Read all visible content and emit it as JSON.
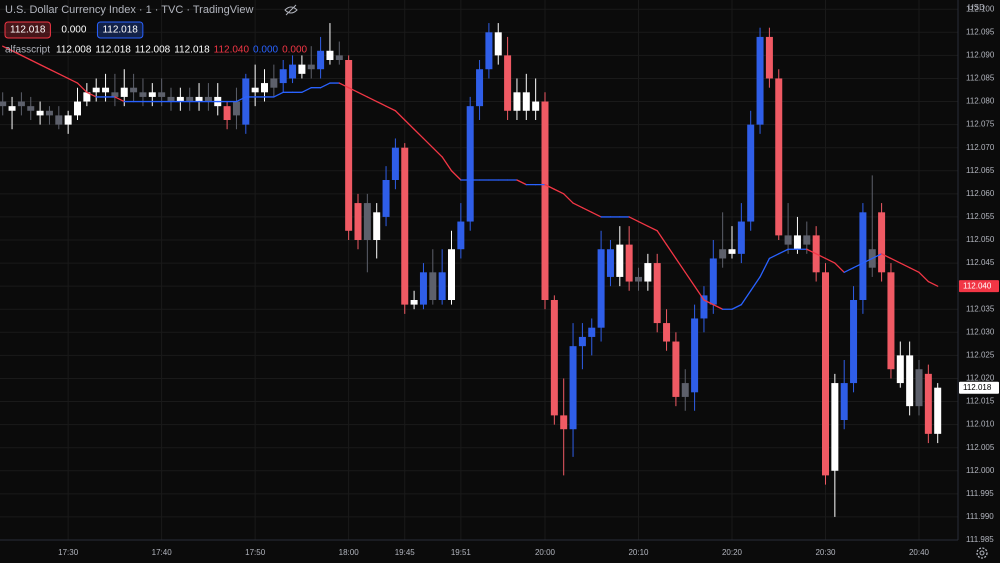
{
  "header": {
    "title": "U.S. Dollar Currency Index · 1 · TVC · TradingView",
    "quote": [
      {
        "text": "112.018",
        "color": "#f23645",
        "box": true
      },
      {
        "text": "0.000",
        "color": "#ffffff",
        "box": false
      },
      {
        "text": "112.018",
        "color": "#2962ff",
        "box": true
      }
    ],
    "indicator": {
      "name": "alfasscript",
      "values": [
        {
          "text": "112.008",
          "color": "#ffffff"
        },
        {
          "text": "112.018",
          "color": "#ffffff"
        },
        {
          "text": "112.008",
          "color": "#ffffff"
        },
        {
          "text": "112.018",
          "color": "#ffffff"
        },
        {
          "text": "112.040",
          "color": "#f23645"
        },
        {
          "text": "0.000",
          "color": "#2962ff"
        },
        {
          "text": "0.000",
          "color": "#f23645"
        }
      ]
    },
    "currency": "USD"
  },
  "chart_data": {
    "type": "candlestick",
    "open": [
      112.08,
      112.078,
      112.08,
      112.079,
      112.077,
      112.078,
      112.077,
      112.075,
      112.077,
      112.08,
      112.082,
      112.083,
      112.082,
      112.081,
      112.083,
      112.082,
      112.081,
      112.082,
      112.081,
      112.08,
      112.081,
      112.08,
      112.081,
      112.079,
      112.079,
      112.077,
      112.075,
      112.082,
      112.082,
      112.083,
      112.084,
      112.085,
      112.086,
      112.087,
      112.087,
      112.089,
      112.09,
      112.089,
      112.058,
      112.058,
      112.05,
      112.055,
      112.063,
      112.07,
      112.036,
      112.036,
      112.043,
      112.037,
      112.037,
      112.048,
      112.054,
      112.079,
      112.087,
      112.095,
      112.09,
      112.078,
      112.082,
      112.078,
      112.08,
      112.037,
      112.012,
      112.009,
      112.027,
      112.029,
      112.031,
      112.042,
      112.042,
      112.049,
      112.041,
      112.041,
      112.045,
      112.032,
      112.028,
      112.016,
      112.017,
      112.033,
      112.036,
      112.046,
      112.048,
      112.047,
      112.054,
      112.075,
      112.094,
      112.085,
      112.051,
      112.048,
      112.051,
      112.051,
      112.043,
      112.0,
      112.011,
      112.019,
      112.037,
      112.044,
      112.056,
      112.043,
      112.019,
      112.025,
      112.022,
      112.021,
      112.008
    ],
    "high": [
      112.082,
      112.081,
      112.082,
      112.081,
      112.08,
      112.079,
      112.079,
      112.078,
      112.083,
      112.084,
      112.085,
      112.086,
      112.086,
      112.087,
      112.086,
      112.085,
      112.084,
      112.085,
      112.083,
      112.083,
      112.083,
      112.084,
      112.084,
      112.084,
      112.08,
      112.083,
      112.086,
      112.088,
      112.087,
      112.088,
      112.089,
      112.09,
      112.09,
      112.092,
      112.094,
      112.097,
      112.093,
      112.09,
      112.06,
      112.06,
      112.058,
      112.066,
      112.072,
      112.071,
      112.039,
      112.045,
      112.048,
      112.048,
      112.052,
      112.058,
      112.081,
      112.089,
      112.097,
      112.097,
      112.094,
      112.085,
      112.086,
      112.085,
      112.082,
      112.038,
      112.02,
      112.032,
      112.032,
      112.033,
      112.052,
      112.05,
      112.053,
      112.053,
      112.044,
      112.047,
      112.047,
      112.035,
      112.03,
      112.022,
      112.036,
      112.04,
      112.05,
      112.056,
      112.053,
      112.058,
      112.078,
      112.096,
      112.096,
      112.087,
      112.058,
      112.055,
      112.054,
      112.053,
      112.045,
      112.021,
      112.024,
      112.04,
      112.058,
      112.064,
      112.058,
      112.045,
      112.028,
      112.028,
      112.024,
      112.023,
      112.019
    ],
    "low": [
      112.077,
      112.074,
      112.077,
      112.076,
      112.075,
      112.075,
      112.074,
      112.073,
      112.076,
      112.079,
      112.08,
      112.08,
      112.079,
      112.079,
      112.08,
      112.079,
      112.079,
      112.079,
      112.078,
      112.078,
      112.078,
      112.078,
      112.078,
      112.077,
      112.074,
      112.074,
      112.073,
      112.079,
      112.08,
      112.081,
      112.082,
      112.084,
      112.085,
      112.085,
      112.085,
      112.088,
      112.088,
      112.05,
      112.048,
      112.043,
      112.046,
      112.053,
      112.061,
      112.034,
      112.035,
      112.035,
      112.036,
      112.036,
      112.036,
      112.046,
      112.052,
      112.076,
      112.085,
      112.088,
      112.076,
      112.076,
      112.076,
      112.076,
      112.035,
      112.01,
      111.999,
      112.003,
      112.022,
      112.025,
      112.028,
      112.04,
      112.04,
      112.039,
      112.039,
      112.039,
      112.03,
      112.026,
      112.014,
      112.013,
      112.013,
      112.03,
      112.034,
      112.044,
      112.046,
      112.045,
      112.052,
      112.073,
      112.083,
      112.05,
      112.047,
      112.047,
      112.047,
      112.041,
      111.997,
      111.99,
      112.009,
      112.017,
      112.034,
      112.042,
      112.041,
      112.02,
      112.018,
      112.012,
      112.012,
      112.006,
      112.006
    ],
    "close": [
      112.079,
      112.079,
      112.079,
      112.078,
      112.078,
      112.077,
      112.075,
      112.077,
      112.08,
      112.082,
      112.083,
      112.082,
      112.081,
      112.083,
      112.082,
      112.081,
      112.082,
      112.081,
      112.08,
      112.081,
      112.08,
      112.081,
      112.08,
      112.081,
      112.076,
      112.08,
      112.085,
      112.083,
      112.084,
      112.085,
      112.087,
      112.088,
      112.088,
      112.088,
      112.091,
      112.091,
      112.089,
      112.052,
      112.05,
      112.05,
      112.056,
      112.063,
      112.07,
      112.036,
      112.037,
      112.043,
      112.037,
      112.043,
      112.048,
      112.054,
      112.079,
      112.087,
      112.095,
      112.09,
      112.078,
      112.082,
      112.078,
      112.08,
      112.037,
      112.012,
      112.009,
      112.027,
      112.029,
      112.031,
      112.048,
      112.048,
      112.049,
      112.041,
      112.042,
      112.045,
      112.032,
      112.028,
      112.016,
      112.019,
      112.033,
      112.038,
      112.046,
      112.048,
      112.047,
      112.054,
      112.075,
      112.094,
      112.085,
      112.051,
      112.049,
      112.051,
      112.049,
      112.043,
      111.999,
      112.019,
      112.019,
      112.037,
      112.056,
      112.048,
      112.043,
      112.022,
      112.025,
      112.014,
      112.014,
      112.008,
      112.018
    ],
    "colors": [
      "#5d606b",
      "#ffffff",
      "#5d606b",
      "#5d606b",
      "#ffffff",
      "#5d606b",
      "#5d606b",
      "#ffffff",
      "#ffffff",
      "#ffffff",
      "#ffffff",
      "#ffffff",
      "#5d606b",
      "#ffffff",
      "#5d606b",
      "#5d606b",
      "#ffffff",
      "#5d606b",
      "#5d606b",
      "#ffffff",
      "#5d606b",
      "#ffffff",
      "#5d606b",
      "#ffffff",
      "#f05a64",
      "#5d606b",
      "#2f5ee8",
      "#ffffff",
      "#ffffff",
      "#5d606b",
      "#2f5ee8",
      "#2f5ee8",
      "#ffffff",
      "#5d606b",
      "#2f5ee8",
      "#ffffff",
      "#5d606b",
      "#f05a64",
      "#f05a64",
      "#5d606b",
      "#ffffff",
      "#2f5ee8",
      "#2f5ee8",
      "#f05a64",
      "#ffffff",
      "#2f5ee8",
      "#5d606b",
      "#2f5ee8",
      "#ffffff",
      "#2f5ee8",
      "#2f5ee8",
      "#2f5ee8",
      "#2f5ee8",
      "#ffffff",
      "#f05a64",
      "#ffffff",
      "#ffffff",
      "#ffffff",
      "#f05a64",
      "#f05a64",
      "#f05a64",
      "#2f5ee8",
      "#2f5ee8",
      "#2f5ee8",
      "#2f5ee8",
      "#2f5ee8",
      "#ffffff",
      "#f05a64",
      "#5d606b",
      "#ffffff",
      "#f05a64",
      "#f05a64",
      "#f05a64",
      "#5d606b",
      "#2f5ee8",
      "#2f5ee8",
      "#2f5ee8",
      "#5d606b",
      "#ffffff",
      "#2f5ee8",
      "#2f5ee8",
      "#2f5ee8",
      "#f05a64",
      "#f05a64",
      "#5d606b",
      "#ffffff",
      "#5d606b",
      "#f05a64",
      "#f05a64",
      "#ffffff",
      "#2f5ee8",
      "#2f5ee8",
      "#2f5ee8",
      "#5d606b",
      "#f05a64",
      "#f05a64",
      "#ffffff",
      "#ffffff",
      "#5d606b",
      "#f05a64",
      "#ffffff"
    ],
    "ma": {
      "up_color": "#2962ff",
      "down_color": "#f23645",
      "values": [
        112.092,
        112.091,
        112.09,
        112.089,
        112.088,
        112.087,
        112.086,
        112.085,
        112.084,
        112.082,
        112.081,
        112.081,
        112.081,
        112.08,
        112.08,
        112.08,
        112.08,
        112.08,
        112.08,
        112.08,
        112.08,
        112.08,
        112.08,
        112.08,
        112.08,
        112.08,
        112.081,
        112.081,
        112.081,
        112.081,
        112.082,
        112.082,
        112.082,
        112.083,
        112.083,
        112.084,
        112.084,
        112.083,
        112.082,
        112.081,
        112.08,
        112.079,
        112.078,
        112.076,
        112.074,
        112.072,
        112.07,
        112.068,
        112.065,
        112.063,
        112.063,
        112.063,
        112.063,
        112.063,
        112.063,
        112.063,
        112.062,
        112.062,
        112.062,
        112.061,
        112.06,
        112.058,
        112.057,
        112.056,
        112.055,
        112.055,
        112.055,
        112.055,
        112.054,
        112.053,
        112.052,
        112.049,
        112.046,
        112.043,
        112.04,
        112.037,
        112.036,
        112.035,
        112.035,
        112.036,
        112.039,
        112.042,
        112.046,
        112.047,
        112.048,
        112.048,
        112.048,
        112.047,
        112.046,
        112.045,
        112.043,
        112.044,
        112.045,
        112.046,
        112.047,
        112.046,
        112.045,
        112.044,
        112.043,
        112.041,
        112.04
      ]
    },
    "ylim": [
      111.985,
      112.102
    ],
    "yticks": [
      {
        "value": 112.1,
        "label": "112.100"
      },
      112.095,
      {
        "value": 112.09,
        "label": "112.090"
      },
      112.085,
      {
        "value": 112.08,
        "label": "112.080"
      },
      112.075,
      {
        "value": 112.07,
        "label": "112.070"
      },
      112.065,
      {
        "value": 112.06,
        "label": "112.060"
      },
      112.055,
      {
        "value": 112.05,
        "label": "112.050"
      },
      112.045,
      {
        "value": 112.04,
        "label": "112.040"
      },
      112.035,
      {
        "value": 112.03,
        "label": "112.030"
      },
      112.025,
      {
        "value": 112.02,
        "label": "112.020"
      },
      112.015,
      {
        "value": 112.01,
        "label": "112.010"
      },
      112.005,
      {
        "value": 112,
        "label": "112.000"
      },
      111.995,
      {
        "value": 111.99,
        "label": "111.990"
      },
      111.985
    ],
    "xticks": [
      {
        "value": 7,
        "label": "17:30"
      },
      {
        "value": 17,
        "label": "17:40"
      },
      {
        "value": 27,
        "label": "17:50"
      },
      {
        "value": 37,
        "label": "18:00"
      },
      {
        "value": 43,
        "label": "19:45"
      },
      {
        "value": 49,
        "label": "19:51"
      },
      {
        "value": 58,
        "label": "20:00"
      },
      {
        "value": 68,
        "label": "20:10"
      },
      {
        "value": 78,
        "label": "20:20"
      },
      {
        "value": 88,
        "label": "20:30"
      },
      {
        "value": 98,
        "label": "20:40"
      }
    ],
    "price_tags": [
      {
        "value": 112.04,
        "label": "112.040",
        "color": "#f23645",
        "text_color": "#ffffff"
      },
      {
        "value": 112.018,
        "label": "112.018",
        "color": "#ffffff",
        "text_color": "#000000"
      }
    ],
    "grid": true
  }
}
